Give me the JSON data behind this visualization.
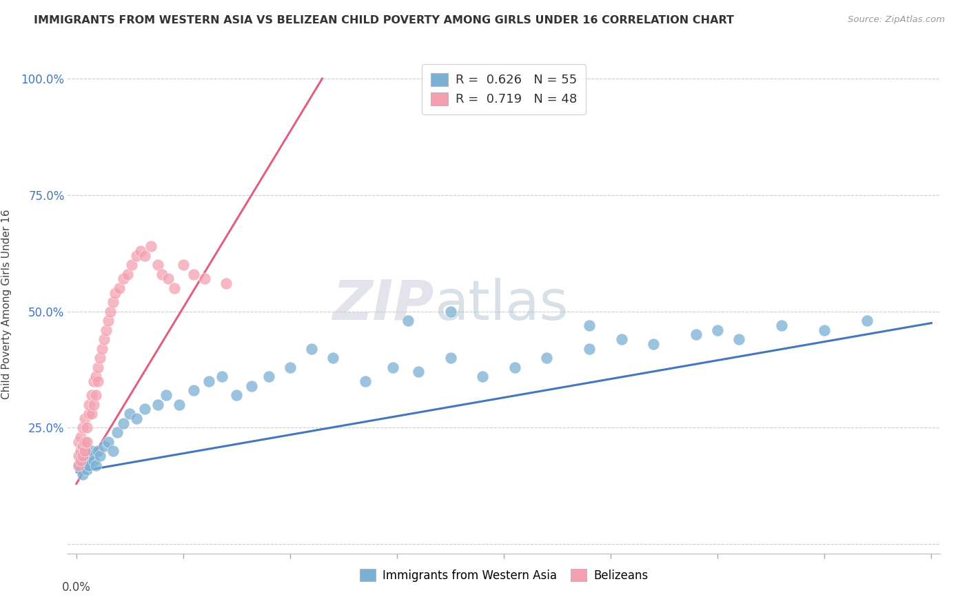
{
  "title": "IMMIGRANTS FROM WESTERN ASIA VS BELIZEAN CHILD POVERTY AMONG GIRLS UNDER 16 CORRELATION CHART",
  "source": "Source: ZipAtlas.com",
  "ylabel": "Child Poverty Among Girls Under 16",
  "ytick_positions": [
    0.0,
    0.25,
    0.5,
    0.75,
    1.0
  ],
  "ytick_labels": [
    "",
    "25.0%",
    "50.0%",
    "75.0%",
    "100.0%"
  ],
  "blue_R": "0.626",
  "blue_N": "55",
  "pink_R": "0.719",
  "pink_N": "48",
  "blue_color": "#7BAFD4",
  "pink_color": "#F4A0B0",
  "blue_line_color": "#4477BB",
  "pink_line_color": "#E06080",
  "legend_label_blue": "Immigrants from Western Asia",
  "legend_label_pink": "Belizeans",
  "watermark_zip": "ZIP",
  "watermark_atlas": "atlas",
  "blue_scatter_x": [
    0.001,
    0.002,
    0.002,
    0.003,
    0.003,
    0.004,
    0.004,
    0.005,
    0.005,
    0.006,
    0.006,
    0.007,
    0.008,
    0.009,
    0.01,
    0.011,
    0.013,
    0.015,
    0.017,
    0.019,
    0.022,
    0.025,
    0.028,
    0.032,
    0.038,
    0.042,
    0.048,
    0.055,
    0.062,
    0.068,
    0.075,
    0.082,
    0.09,
    0.1,
    0.11,
    0.12,
    0.135,
    0.148,
    0.16,
    0.175,
    0.19,
    0.205,
    0.22,
    0.24,
    0.255,
    0.27,
    0.29,
    0.31,
    0.33,
    0.35,
    0.37,
    0.155,
    0.175,
    0.24,
    0.3
  ],
  "blue_scatter_y": [
    0.17,
    0.19,
    0.16,
    0.18,
    0.15,
    0.2,
    0.17,
    0.18,
    0.16,
    0.19,
    0.17,
    0.2,
    0.18,
    0.17,
    0.2,
    0.19,
    0.21,
    0.22,
    0.2,
    0.24,
    0.26,
    0.28,
    0.27,
    0.29,
    0.3,
    0.32,
    0.3,
    0.33,
    0.35,
    0.36,
    0.32,
    0.34,
    0.36,
    0.38,
    0.42,
    0.4,
    0.35,
    0.38,
    0.37,
    0.4,
    0.36,
    0.38,
    0.4,
    0.42,
    0.44,
    0.43,
    0.45,
    0.44,
    0.47,
    0.46,
    0.48,
    0.48,
    0.5,
    0.47,
    0.46
  ],
  "pink_scatter_x": [
    0.001,
    0.001,
    0.001,
    0.002,
    0.002,
    0.002,
    0.003,
    0.003,
    0.003,
    0.004,
    0.004,
    0.004,
    0.005,
    0.005,
    0.006,
    0.006,
    0.007,
    0.007,
    0.008,
    0.008,
    0.009,
    0.009,
    0.01,
    0.01,
    0.011,
    0.012,
    0.013,
    0.014,
    0.015,
    0.016,
    0.017,
    0.018,
    0.02,
    0.022,
    0.024,
    0.026,
    0.028,
    0.03,
    0.032,
    0.035,
    0.038,
    0.04,
    0.043,
    0.046,
    0.05,
    0.055,
    0.06,
    0.07
  ],
  "pink_scatter_y": [
    0.17,
    0.19,
    0.22,
    0.18,
    0.2,
    0.23,
    0.19,
    0.21,
    0.25,
    0.2,
    0.22,
    0.27,
    0.22,
    0.25,
    0.28,
    0.3,
    0.28,
    0.32,
    0.3,
    0.35,
    0.32,
    0.36,
    0.35,
    0.38,
    0.4,
    0.42,
    0.44,
    0.46,
    0.48,
    0.5,
    0.52,
    0.54,
    0.55,
    0.57,
    0.58,
    0.6,
    0.62,
    0.63,
    0.62,
    0.64,
    0.6,
    0.58,
    0.57,
    0.55,
    0.6,
    0.58,
    0.57,
    0.56
  ],
  "blue_line_x": [
    0.0,
    0.4
  ],
  "blue_line_y": [
    0.155,
    0.475
  ],
  "pink_line_x": [
    0.0,
    0.115
  ],
  "pink_line_y": [
    0.13,
    1.0
  ],
  "xlim": [
    -0.004,
    0.404
  ],
  "ylim": [
    -0.02,
    1.05
  ]
}
